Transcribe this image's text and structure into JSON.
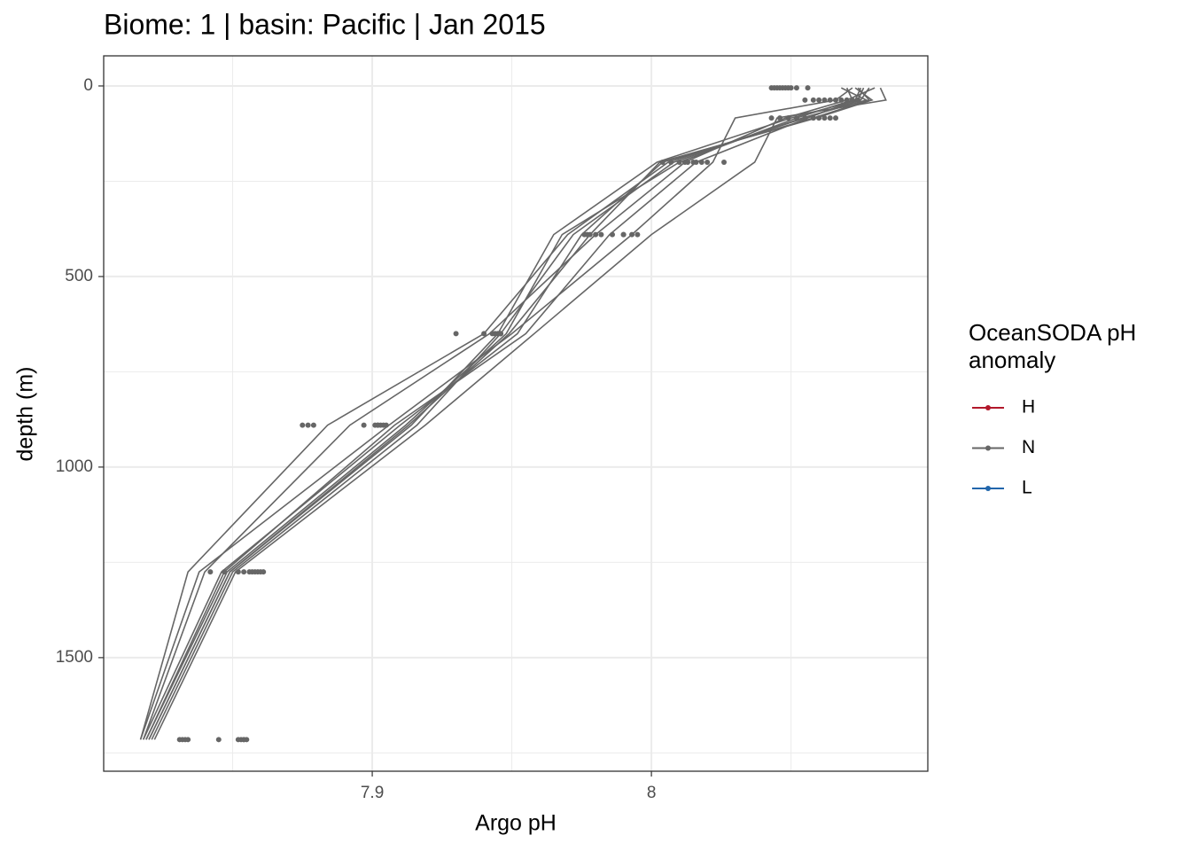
{
  "chart_data": {
    "type": "line",
    "title": "Biome: 1 | basin: Pacific  | Jan 2015",
    "x_label": "Argo pH",
    "y_label": "depth (m)",
    "xlim": [
      7.8038,
      8.099
    ],
    "ylim": [
      -79,
      1798
    ],
    "y_reversed": true,
    "xticks": [
      7.9,
      8.0
    ],
    "xminor_ticks": [
      7.85,
      7.95,
      8.05
    ],
    "yticks": [
      0,
      500,
      1000,
      1500
    ],
    "yminor_ticks": [
      250,
      750,
      1250,
      1750
    ],
    "grid": true,
    "y": [
      5,
      37,
      84,
      200,
      390,
      650,
      890,
      1275,
      1715
    ],
    "series": [
      {
        "color": "#666666",
        "values": [
          8.082,
          8.084,
          8.045,
          8.037,
          8.0,
          7.958,
          7.919,
          7.851,
          7.822
        ],
        "point_values": [
          8.043,
          8.06,
          8.046,
          8.026,
          7.995,
          7.946,
          7.905,
          7.861,
          7.854
        ]
      },
      {
        "color": "#666666",
        "values": [
          8.072,
          8.066,
          8.03,
          8.022,
          7.993,
          7.95,
          7.906,
          7.838,
          7.817
        ],
        "point_values": [
          8.044,
          8.055,
          8.043,
          8.016,
          7.99,
          7.94,
          7.879,
          7.842,
          7.831
        ]
      },
      {
        "color": "#666666",
        "values": [
          8.076,
          8.074,
          8.05,
          8.002,
          7.965,
          7.945,
          7.914,
          7.849,
          7.82
        ],
        "point_values": [
          8.045,
          8.064,
          8.049,
          8.004,
          7.976,
          7.945,
          7.897,
          7.847,
          7.833
        ]
      },
      {
        "color": "#666666",
        "values": [
          8.078,
          8.075,
          8.055,
          8.006,
          7.97,
          7.94,
          7.884,
          7.834,
          7.817
        ],
        "point_values": [
          8.046,
          8.066,
          8.052,
          8.007,
          7.977,
          7.93,
          7.875,
          7.852,
          7.834
        ]
      },
      {
        "color": "#666666",
        "values": [
          8.07,
          8.072,
          8.052,
          8.01,
          7.968,
          7.948,
          7.912,
          7.848,
          7.819
        ],
        "point_values": [
          8.047,
          8.058,
          8.055,
          8.01,
          7.98,
          7.944,
          7.877,
          7.854,
          7.845
        ]
      },
      {
        "color": "#666666",
        "values": [
          8.074,
          8.078,
          8.058,
          8.004,
          7.975,
          7.952,
          7.91,
          7.846,
          7.818
        ],
        "point_values": [
          8.048,
          8.062,
          8.058,
          8.012,
          7.982,
          7.946,
          7.902,
          7.856,
          7.852
        ]
      },
      {
        "color": "#666666",
        "values": [
          8.08,
          8.07,
          8.048,
          8.012,
          7.98,
          7.942,
          7.892,
          7.84,
          7.818
        ],
        "point_values": [
          8.049,
          8.068,
          8.06,
          8.015,
          7.986,
          7.944,
          7.903,
          7.857,
          7.853
        ]
      },
      {
        "color": "#666666",
        "values": [
          8.068,
          8.077,
          8.054,
          8.008,
          7.972,
          7.946,
          7.916,
          7.85,
          7.821
        ],
        "point_values": [
          8.05,
          8.07,
          8.062,
          8.018,
          7.99,
          7.945,
          7.904,
          7.858,
          7.854
        ]
      },
      {
        "color": "#666666",
        "values": [
          8.075,
          8.073,
          8.056,
          8.016,
          7.985,
          7.955,
          7.908,
          7.847,
          7.819
        ],
        "point_values": [
          8.052,
          8.072,
          8.064,
          8.02,
          7.993,
          7.946,
          7.902,
          7.859,
          7.855
        ]
      },
      {
        "color": "#666666",
        "values": [
          8.073,
          8.079,
          8.059,
          8.003,
          7.978,
          7.949,
          7.913,
          7.849,
          7.82
        ],
        "point_values": [
          8.056,
          8.074,
          8.066,
          8.013,
          7.978,
          7.943,
          7.901,
          7.86,
          7.832
        ]
      }
    ],
    "legend": {
      "title": [
        "OceanSODA pH",
        "anomaly"
      ],
      "items": [
        {
          "name": "H",
          "color": "#b2182b"
        },
        {
          "name": "N",
          "color": "#666666"
        },
        {
          "name": "L",
          "color": "#2166ac"
        }
      ]
    }
  }
}
